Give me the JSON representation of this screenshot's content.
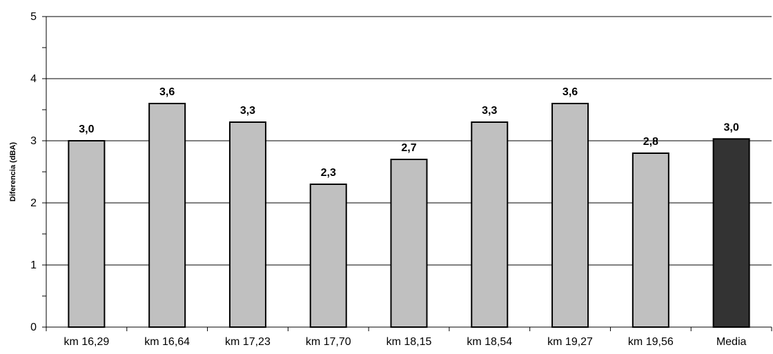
{
  "chart_data": {
    "type": "bar",
    "title": "",
    "xlabel": "",
    "ylabel": "Diferencia (dBA)",
    "ylim": [
      0,
      5
    ],
    "yticks": [
      "0",
      "1",
      "2",
      "3",
      "4",
      "5"
    ],
    "grid": true,
    "categories": [
      "km 16,29",
      "km 16,64",
      "km 17,23",
      "km 17,70",
      "km 18,15",
      "km 18,54",
      "km 19,27",
      "km 19,56",
      "Media"
    ],
    "values": [
      3.0,
      3.6,
      3.3,
      2.3,
      2.7,
      3.3,
      3.6,
      2.8,
      3.03
    ],
    "data_labels": [
      "3,0",
      "3,6",
      "3,3",
      "2,3",
      "2,7",
      "3,3",
      "3,6",
      "2,8",
      "3,0"
    ],
    "colors": {
      "bar": "#c0c0c0",
      "highlight_bar": "#333333",
      "bar_stroke": "#000000",
      "grid": "#000000"
    },
    "highlight_index": 8
  }
}
